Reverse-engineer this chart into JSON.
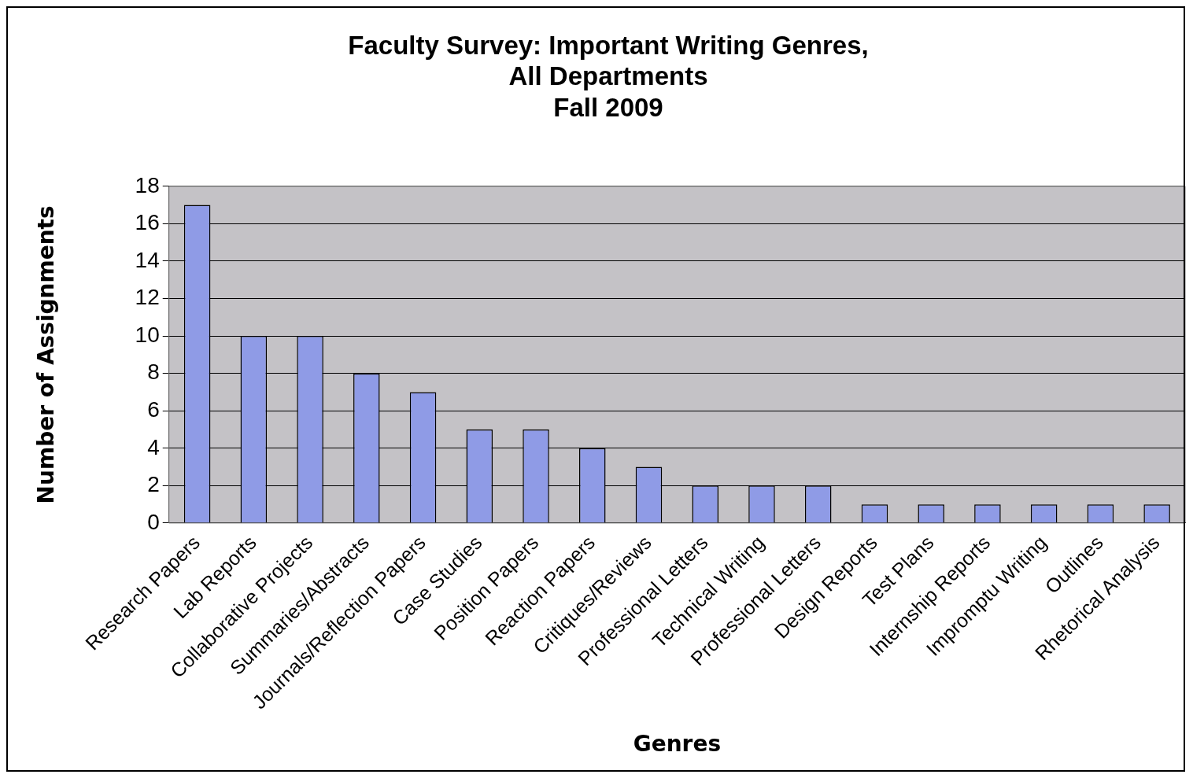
{
  "chart_data": {
    "type": "bar",
    "title": "Faculty Survey: Important Writing Genres,\nAll Departments\nFall 2009",
    "xlabel": "Genres",
    "ylabel": "Number of Assignments",
    "categories": [
      "Research Papers",
      "Lab Reports",
      "Collaborative Projects",
      "Summaries/Abstracts",
      "Journals/Reflection Papers",
      "Case Studies",
      "Position Papers",
      "Reaction Papers",
      "Critiques/Reviews",
      "Professional Letters",
      "Technical Writing",
      "Professional Letters",
      "Design Reports",
      "Test Plans",
      "Internship Reports",
      "Impromptu Writing",
      "Outlines",
      "Rhetorical Analysis"
    ],
    "values": [
      17,
      10,
      10,
      8,
      7,
      5,
      5,
      4,
      3,
      2,
      2,
      2,
      1,
      1,
      1,
      1,
      1,
      1
    ],
    "color": "#8f9be6",
    "ylim": [
      0,
      18
    ],
    "yticks": [
      0,
      2,
      4,
      6,
      8,
      10,
      12,
      14,
      16,
      18
    ],
    "grid": "y",
    "legend": false
  }
}
